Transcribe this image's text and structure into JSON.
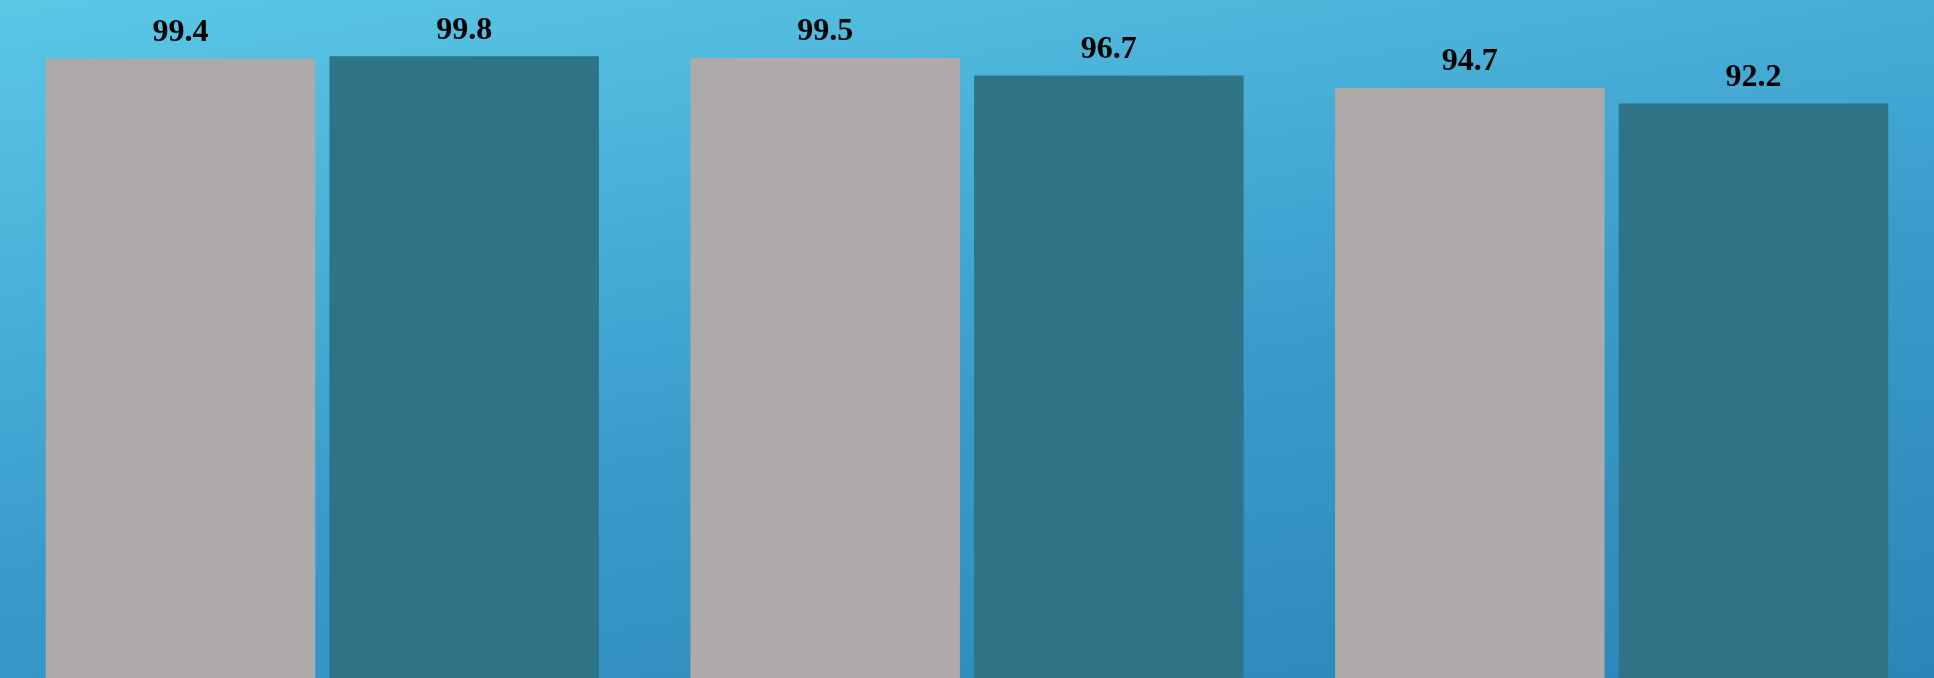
{
  "chart_data": {
    "type": "bar",
    "categories": [
      null,
      null,
      null
    ],
    "series": [
      {
        "color": "#aeaaaa",
        "values": [
          99.4,
          99.5,
          94.7
        ]
      },
      {
        "color": "#2e7386",
        "values": [
          99.8,
          96.7,
          92.2
        ]
      }
    ],
    "data_labels": true,
    "tick_labels": false,
    "legend": false
  }
}
